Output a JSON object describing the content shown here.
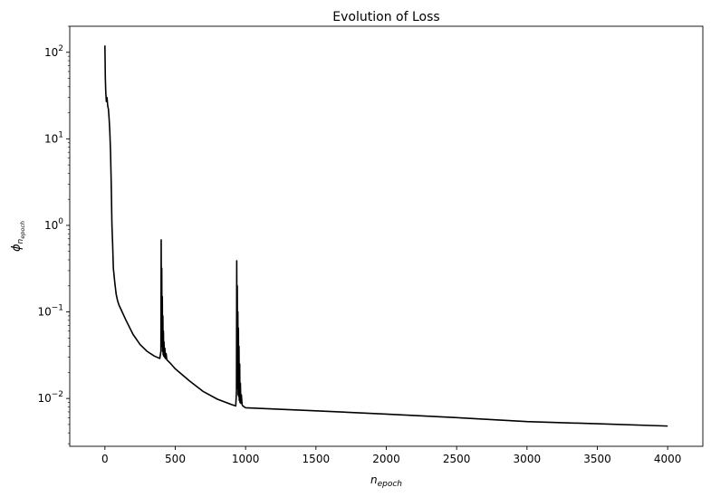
{
  "chart_data": {
    "type": "line",
    "title": "Evolution of Loss",
    "xlabel": {
      "base": "n",
      "subscript": "epoch"
    },
    "ylabel": {
      "base": "ϕ",
      "subscript_base": "n",
      "subscript_sub": "epoch"
    },
    "xlim": [
      -250,
      4250
    ],
    "ylim": [
      0.0028,
      200
    ],
    "yscale": "log",
    "x_ticks": [
      0,
      500,
      1000,
      1500,
      2000,
      2500,
      3000,
      3500,
      4000
    ],
    "x_tick_labels": [
      "0",
      "500",
      "1000",
      "1500",
      "2000",
      "2500",
      "3000",
      "3500",
      "4000"
    ],
    "y_ticks": [
      {
        "value": 0.01,
        "base": "10",
        "exp": "−2"
      },
      {
        "value": 0.1,
        "base": "10",
        "exp": "−1"
      },
      {
        "value": 1,
        "base": "10",
        "exp": "0"
      },
      {
        "value": 10,
        "base": "10",
        "exp": "1"
      },
      {
        "value": 100,
        "base": "10",
        "exp": "2"
      }
    ],
    "grid": false,
    "series": [
      {
        "color": "#000000",
        "x": [
          0,
          3,
          6,
          10,
          15,
          20,
          25,
          30,
          35,
          40,
          45,
          50,
          55,
          60,
          70,
          80,
          90,
          100,
          150,
          200,
          250,
          300,
          350,
          390,
          398,
          400,
          402,
          404,
          406,
          408,
          410,
          412,
          414,
          416,
          418,
          420,
          423,
          426,
          430,
          435,
          440,
          450,
          470,
          500,
          600,
          700,
          800,
          900,
          930,
          935,
          937,
          939,
          941,
          943,
          945,
          947,
          949,
          951,
          953,
          955,
          958,
          960,
          963,
          966,
          970,
          975,
          980,
          990,
          1000,
          1500,
          2000,
          2500,
          3000,
          3500,
          4000
        ],
        "y": [
          120,
          50,
          35,
          27,
          30,
          24,
          22,
          17,
          12,
          7,
          3,
          1,
          0.6,
          0.32,
          0.22,
          0.16,
          0.135,
          0.12,
          0.08,
          0.055,
          0.042,
          0.035,
          0.031,
          0.029,
          0.035,
          0.68,
          0.05,
          0.32,
          0.04,
          0.15,
          0.035,
          0.09,
          0.032,
          0.06,
          0.031,
          0.045,
          0.03,
          0.038,
          0.029,
          0.033,
          0.028,
          0.027,
          0.025,
          0.022,
          0.016,
          0.012,
          0.0098,
          0.0085,
          0.0082,
          0.012,
          0.39,
          0.02,
          0.2,
          0.013,
          0.1,
          0.011,
          0.065,
          0.0105,
          0.04,
          0.0095,
          0.025,
          0.009,
          0.015,
          0.0088,
          0.011,
          0.0085,
          0.0082,
          0.008,
          0.0078,
          0.0072,
          0.0066,
          0.006,
          0.0054,
          0.0051,
          0.0048
        ]
      }
    ]
  }
}
